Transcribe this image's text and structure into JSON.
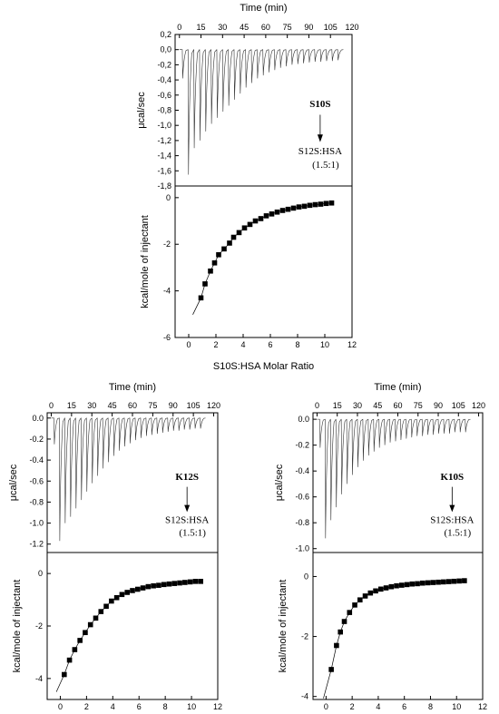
{
  "chart_data": [
    {
      "id": "S10S",
      "type": "line",
      "panels": {
        "raw": {
          "type": "line",
          "xlabel": "Time (min)",
          "ylabel": "μcal/sec",
          "xlim": [
            -3,
            120
          ],
          "ylim": [
            -1.8,
            0.2
          ],
          "xticks": [
            0,
            15,
            30,
            45,
            60,
            75,
            90,
            105,
            120
          ],
          "yticks": [
            0.2,
            0.0,
            -0.2,
            -0.4,
            -0.6,
            -0.8,
            -1.0,
            -1.2,
            -1.4,
            -1.6,
            -1.8
          ],
          "yticklabels": [
            "0,2",
            "0,0",
            "-0,2",
            "-0,4",
            "-0,6",
            "-0,8",
            "-1,0",
            "-1,2",
            "-1,4",
            "-1,6",
            "-1,8"
          ],
          "peak_times": [
            2,
            6,
            10,
            14,
            18,
            22,
            26,
            30,
            34,
            38,
            42,
            46,
            50,
            54,
            58,
            62,
            66,
            70,
            74,
            78,
            82,
            86,
            90,
            94,
            98,
            102,
            106,
            110
          ],
          "peak_depths": [
            -0.38,
            -1.65,
            -1.3,
            -1.2,
            -1.08,
            -0.98,
            -0.9,
            -0.82,
            -0.74,
            -0.66,
            -0.58,
            -0.5,
            -0.44,
            -0.38,
            -0.34,
            -0.3,
            -0.27,
            -0.24,
            -0.22,
            -0.2,
            -0.19,
            -0.18,
            -0.17,
            -0.16,
            -0.16,
            -0.15,
            -0.15,
            -0.14
          ],
          "annotation": {
            "top": "S10S",
            "bottom": "S12S:HSA",
            "ratio": "(1.5:1)"
          }
        },
        "integrated": {
          "type": "scatter",
          "xlabel": "S10S:HSA Molar Ratio",
          "ylabel": "kcal/mole of injectant",
          "xlim": [
            -1,
            12
          ],
          "ylim": [
            -6,
            0.5
          ],
          "xticks": [
            0,
            2,
            4,
            6,
            8,
            10,
            12
          ],
          "yticks": [
            0,
            -2,
            -4,
            -6
          ],
          "x": [
            0.9,
            1.2,
            1.6,
            1.9,
            2.2,
            2.6,
            3.0,
            3.3,
            3.7,
            4.1,
            4.5,
            4.9,
            5.3,
            5.7,
            6.1,
            6.5,
            6.9,
            7.3,
            7.7,
            8.1,
            8.5,
            8.9,
            9.3,
            9.7,
            10.1,
            10.5
          ],
          "y": [
            -4.3,
            -3.7,
            -3.15,
            -2.8,
            -2.45,
            -2.2,
            -1.95,
            -1.7,
            -1.5,
            -1.3,
            -1.15,
            -1.0,
            -0.9,
            -0.78,
            -0.7,
            -0.62,
            -0.55,
            -0.5,
            -0.45,
            -0.4,
            -0.37,
            -0.33,
            -0.3,
            -0.28,
            -0.25,
            -0.23
          ]
        }
      }
    },
    {
      "id": "K12S",
      "type": "line",
      "panels": {
        "raw": {
          "type": "line",
          "xlabel": "Time (min)",
          "ylabel": "μcal/sec",
          "xlim": [
            -3,
            123
          ],
          "ylim": [
            -1.28,
            0.05
          ],
          "xticks": [
            0,
            15,
            30,
            45,
            60,
            75,
            90,
            105,
            120
          ],
          "yticks": [
            0.0,
            -0.2,
            -0.4,
            -0.6,
            -0.8,
            -1.0,
            -1.2
          ],
          "yticklabels": [
            "0.0",
            "-0.2",
            "-0.4",
            "-0.6",
            "-0.8",
            "-1.0",
            "-1.2"
          ],
          "peak_times": [
            2,
            6,
            10,
            14,
            18,
            22,
            26,
            30,
            34,
            38,
            42,
            46,
            50,
            54,
            58,
            62,
            66,
            70,
            74,
            78,
            82,
            86,
            90,
            94,
            98,
            102,
            106,
            110
          ],
          "peak_depths": [
            -0.25,
            -1.17,
            -1.0,
            -0.94,
            -0.86,
            -0.78,
            -0.7,
            -0.62,
            -0.55,
            -0.48,
            -0.42,
            -0.36,
            -0.31,
            -0.27,
            -0.24,
            -0.21,
            -0.19,
            -0.17,
            -0.16,
            -0.15,
            -0.14,
            -0.13,
            -0.12,
            -0.12,
            -0.11,
            -0.11,
            -0.1,
            -0.1
          ],
          "annotation": {
            "top": "K12S",
            "bottom": "S12S:HSA",
            "ratio": "(1.5:1)"
          }
        },
        "integrated": {
          "type": "scatter",
          "xlabel": "",
          "ylabel": "kcal/mole of injectant",
          "xlim": [
            -1,
            12
          ],
          "ylim": [
            -4.8,
            0.8
          ],
          "xticks": [
            0,
            2,
            4,
            6,
            8,
            10,
            12
          ],
          "yticks": [
            0,
            -2,
            -4
          ],
          "x": [
            0.3,
            0.7,
            1.1,
            1.5,
            1.9,
            2.3,
            2.7,
            3.1,
            3.5,
            3.9,
            4.3,
            4.7,
            5.1,
            5.5,
            5.9,
            6.3,
            6.7,
            7.1,
            7.5,
            7.9,
            8.3,
            8.7,
            9.1,
            9.5,
            9.9,
            10.3,
            10.7
          ],
          "y": [
            -3.85,
            -3.3,
            -2.9,
            -2.55,
            -2.25,
            -1.95,
            -1.7,
            -1.45,
            -1.25,
            -1.05,
            -0.92,
            -0.8,
            -0.72,
            -0.65,
            -0.6,
            -0.55,
            -0.5,
            -0.47,
            -0.45,
            -0.42,
            -0.4,
            -0.38,
            -0.36,
            -0.34,
            -0.32,
            -0.3,
            -0.3
          ]
        }
      }
    },
    {
      "id": "K10S",
      "type": "line",
      "panels": {
        "raw": {
          "type": "line",
          "xlabel": "Time (min)",
          "ylabel": "μcal/sec",
          "xlim": [
            -3,
            123
          ],
          "ylim": [
            -1.03,
            0.05
          ],
          "xticks": [
            0,
            15,
            30,
            45,
            60,
            75,
            90,
            105,
            120
          ],
          "yticks": [
            0.0,
            -0.2,
            -0.4,
            -0.6,
            -0.8,
            -1.0
          ],
          "yticklabels": [
            "0.0",
            "-0.2",
            "-0.4",
            "-0.6",
            "-0.8",
            "-1.0"
          ],
          "peak_times": [
            2,
            6,
            10,
            14,
            18,
            22,
            26,
            30,
            34,
            38,
            42,
            46,
            50,
            54,
            58,
            62,
            66,
            70,
            74,
            78,
            82,
            86,
            90,
            94,
            98,
            102,
            106,
            110
          ],
          "peak_depths": [
            -0.22,
            -0.92,
            -0.78,
            -0.68,
            -0.58,
            -0.5,
            -0.43,
            -0.37,
            -0.32,
            -0.28,
            -0.25,
            -0.22,
            -0.2,
            -0.18,
            -0.17,
            -0.16,
            -0.15,
            -0.14,
            -0.13,
            -0.13,
            -0.12,
            -0.12,
            -0.11,
            -0.11,
            -0.11,
            -0.1,
            -0.1,
            -0.1
          ],
          "annotation": {
            "top": "K10S",
            "bottom": "S12S:HSA",
            "ratio": "(1.5:1)"
          }
        },
        "integrated": {
          "type": "scatter",
          "xlabel": "",
          "ylabel": "kcal/mole of injectant",
          "xlim": [
            -1,
            12
          ],
          "ylim": [
            -4.1,
            0.8
          ],
          "xticks": [
            0,
            2,
            4,
            6,
            8,
            10,
            12
          ],
          "yticks": [
            0,
            -2,
            -4
          ],
          "x": [
            0.4,
            0.8,
            1.1,
            1.4,
            1.8,
            2.2,
            2.6,
            3.0,
            3.4,
            3.8,
            4.2,
            4.6,
            5.0,
            5.4,
            5.8,
            6.2,
            6.6,
            7.0,
            7.4,
            7.8,
            8.2,
            8.6,
            9.0,
            9.4,
            9.8,
            10.2,
            10.6
          ],
          "y": [
            -3.1,
            -2.3,
            -1.85,
            -1.5,
            -1.2,
            -0.95,
            -0.78,
            -0.65,
            -0.55,
            -0.48,
            -0.42,
            -0.38,
            -0.34,
            -0.31,
            -0.29,
            -0.27,
            -0.25,
            -0.24,
            -0.22,
            -0.21,
            -0.2,
            -0.19,
            -0.18,
            -0.17,
            -0.16,
            -0.15,
            -0.14
          ]
        }
      }
    }
  ]
}
